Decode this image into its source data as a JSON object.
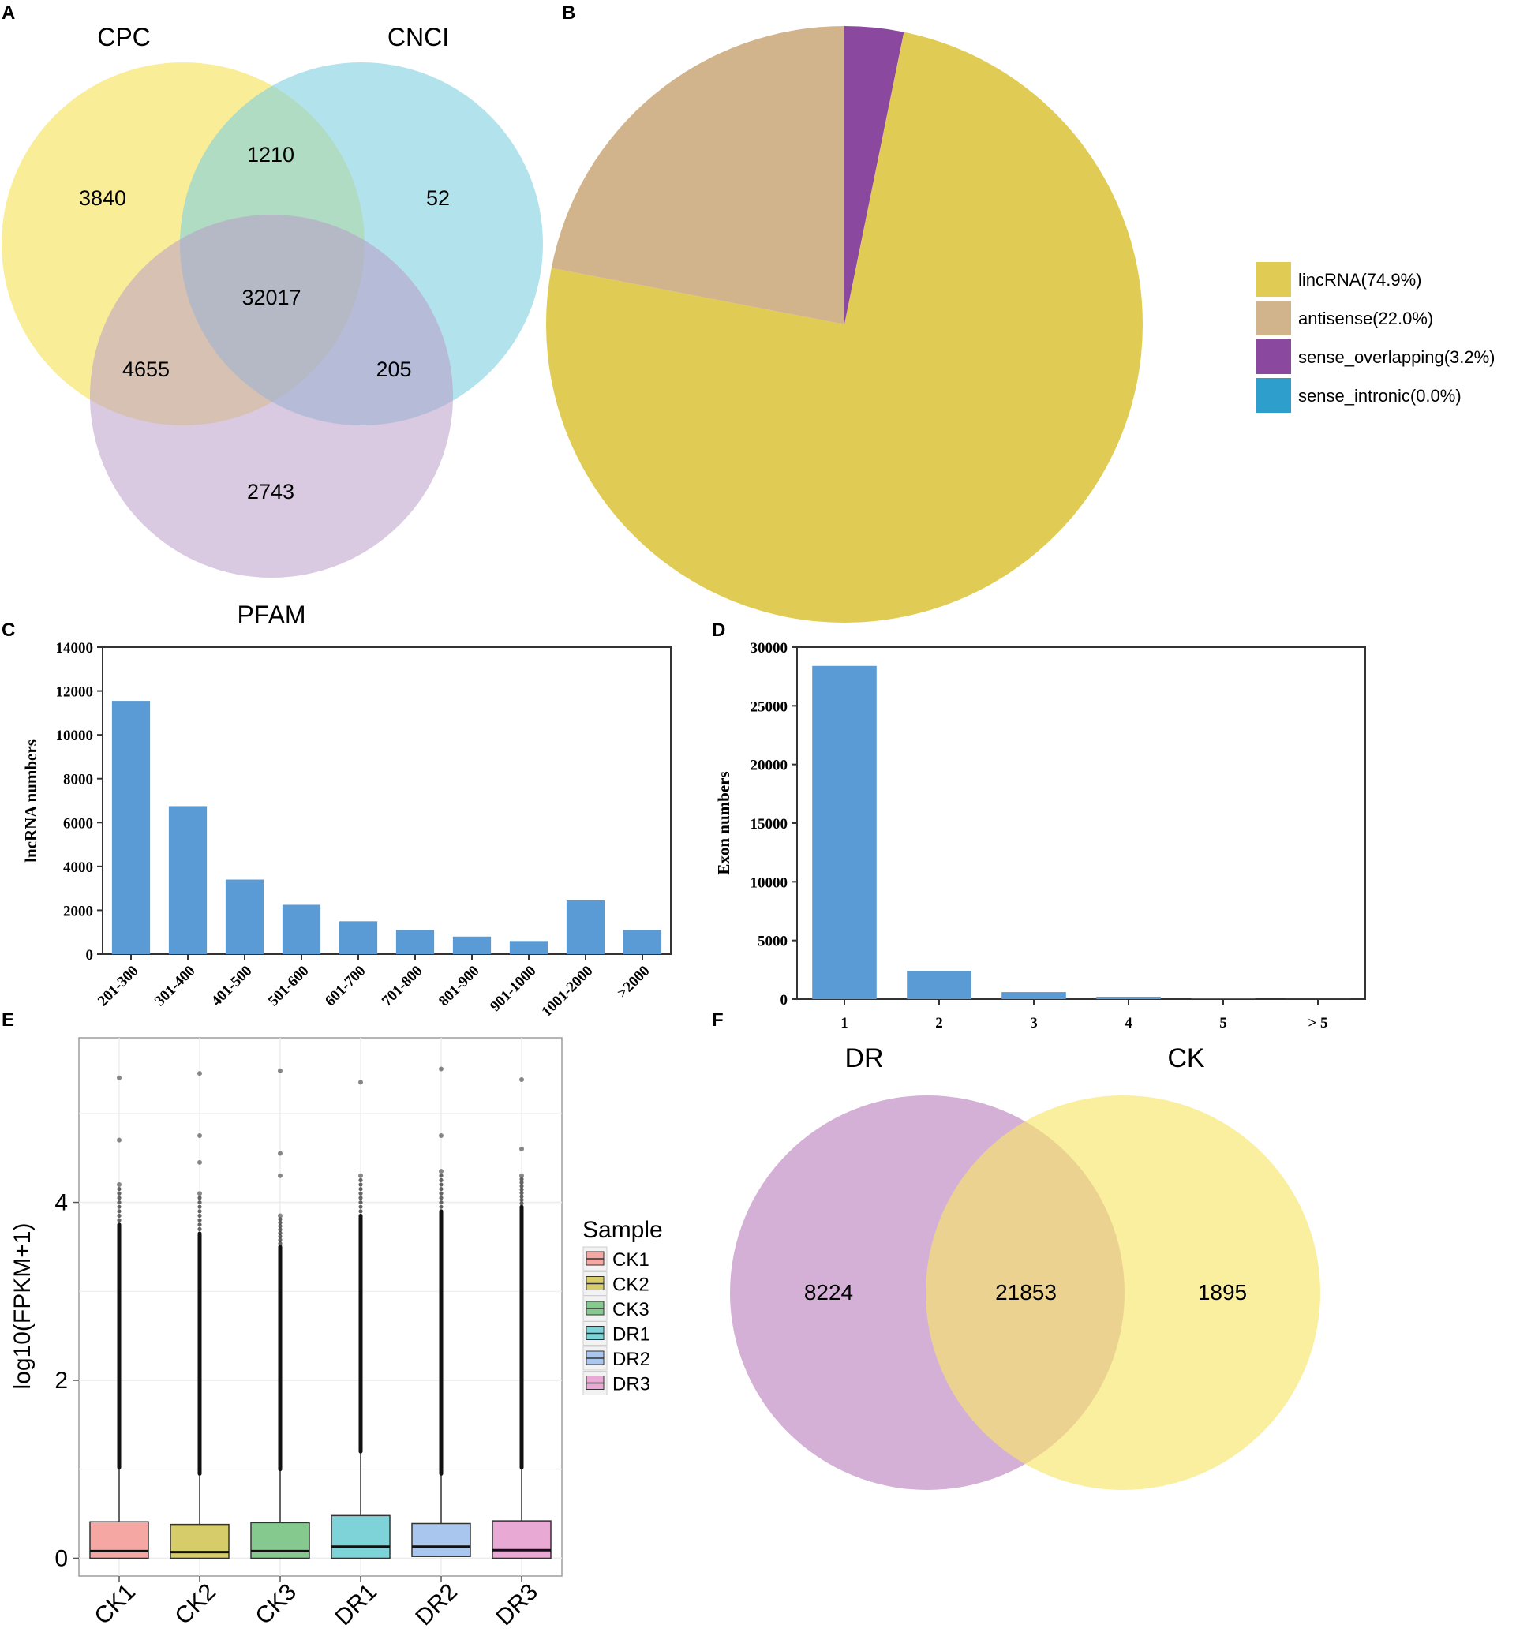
{
  "panels": {
    "a": "A",
    "b": "B",
    "c": "C",
    "d": "D",
    "e": "E",
    "f": "F"
  },
  "chart_data": [
    {
      "panel": "A",
      "type": "venn",
      "sets": [
        "CPC",
        "CNCI",
        "PFAM"
      ],
      "regions": {
        "cpc_only": "3840",
        "cnci_only": "52",
        "pfam_only": "2743",
        "cpc_cnci": "1210",
        "cpc_pfam": "4655",
        "cnci_pfam": "205",
        "all": "32017"
      },
      "colors": {
        "cpc": "#F7E56C",
        "cnci": "#7FD0E0",
        "pfam": "#B99CC9"
      }
    },
    {
      "panel": "B",
      "type": "pie",
      "slices": [
        {
          "label": "lincRNA(74.9%)",
          "value": 74.9,
          "color": "#E0CC55"
        },
        {
          "label": "antisense(22.0%)",
          "value": 22.0,
          "color": "#D2B48C"
        },
        {
          "label": "sense_overlapping(3.2%)",
          "value": 3.2,
          "color": "#8A489E"
        },
        {
          "label": "sense_intronic(0.0%)",
          "value": 0.0,
          "color": "#2E9FCC"
        }
      ]
    },
    {
      "panel": "C",
      "type": "bar",
      "ylabel": "lncRNA numbers",
      "ylim": [
        0,
        14000
      ],
      "yticks": [
        "0",
        "2000",
        "4000",
        "6000",
        "8000",
        "10000",
        "12000",
        "14000"
      ],
      "categories": [
        "201-300",
        "301-400",
        "401-500",
        "501-600",
        "601-700",
        "701-800",
        "801-900",
        "901-1000",
        "1001-2000",
        ">2000"
      ],
      "values": [
        11550,
        6750,
        3400,
        2250,
        1500,
        1100,
        800,
        600,
        2450,
        1100
      ],
      "color": "#5B9BD5"
    },
    {
      "panel": "D",
      "type": "bar",
      "ylabel": "Exon numbers",
      "ylim": [
        0,
        30000
      ],
      "yticks": [
        "0",
        "5000",
        "10000",
        "15000",
        "20000",
        "25000",
        "30000"
      ],
      "categories": [
        "1",
        "2",
        "3",
        "4",
        "5",
        "> 5"
      ],
      "values": [
        28400,
        2400,
        600,
        200,
        30,
        10
      ],
      "color": "#5B9BD5"
    },
    {
      "panel": "E",
      "type": "boxplot",
      "ylabel": "log10(FPKM+1)",
      "ylim": [
        -0.2,
        5.85
      ],
      "yticks": [
        "0",
        "2",
        "4"
      ],
      "legend_title": "Sample",
      "boxes": [
        {
          "name": "CK1",
          "q1": 0.0,
          "median": 0.08,
          "q3": 0.41,
          "whisker": 1.02,
          "outlier_dense_top": 3.75,
          "extreme": [
            4.2,
            4.7,
            5.4
          ],
          "color": "#F4A7A3"
        },
        {
          "name": "CK2",
          "q1": 0.0,
          "median": 0.07,
          "q3": 0.38,
          "whisker": 0.95,
          "outlier_dense_top": 3.65,
          "extreme": [
            4.1,
            4.45,
            4.75,
            5.45
          ],
          "color": "#D6CC6A"
        },
        {
          "name": "CK3",
          "q1": 0.0,
          "median": 0.08,
          "q3": 0.4,
          "whisker": 1.0,
          "outlier_dense_top": 3.5,
          "extreme": [
            3.85,
            4.3,
            4.55,
            5.48
          ],
          "color": "#86C98F"
        },
        {
          "name": "DR1",
          "q1": 0.0,
          "median": 0.13,
          "q3": 0.48,
          "whisker": 1.2,
          "outlier_dense_top": 3.85,
          "extreme": [
            4.3,
            5.35
          ],
          "color": "#7ED3D8"
        },
        {
          "name": "DR2",
          "q1": 0.02,
          "median": 0.13,
          "q3": 0.39,
          "whisker": 0.95,
          "outlier_dense_top": 3.9,
          "extreme": [
            4.35,
            4.75,
            5.5
          ],
          "color": "#A9C7EE"
        },
        {
          "name": "DR3",
          "q1": 0.0,
          "median": 0.09,
          "q3": 0.42,
          "whisker": 1.02,
          "outlier_dense_top": 3.95,
          "extreme": [
            4.3,
            4.6,
            5.38
          ],
          "color": "#E9A9D5"
        }
      ]
    },
    {
      "panel": "F",
      "type": "venn",
      "sets": [
        "DR",
        "CK"
      ],
      "regions": {
        "dr_only": "8224",
        "shared": "21853",
        "ck_only": "1895"
      },
      "colors": {
        "dr": "#C596C8",
        "ck": "#F7E56C"
      }
    }
  ]
}
